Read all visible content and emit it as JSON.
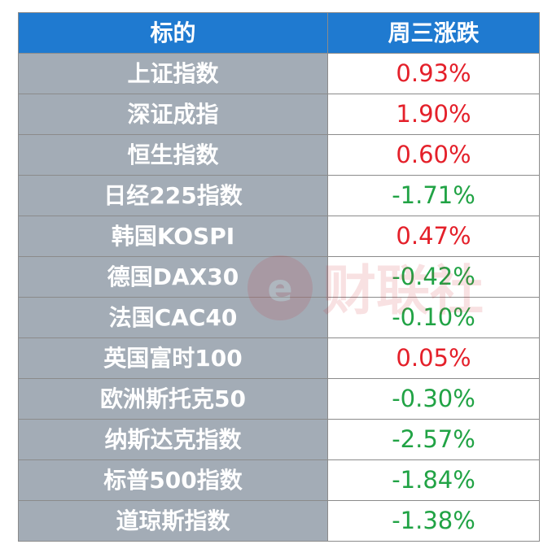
{
  "header": {
    "col_name": "标的",
    "col_change": "周三涨跌"
  },
  "rows": [
    {
      "name": "上证指数",
      "change": "0.93%",
      "direction": "up"
    },
    {
      "name": "深证成指",
      "change": "1.90%",
      "direction": "up"
    },
    {
      "name": "恒生指数",
      "change": "0.60%",
      "direction": "up"
    },
    {
      "name": "日经225指数",
      "change": "-1.71%",
      "direction": "down"
    },
    {
      "name": "韩国KOSPI",
      "change": "0.47%",
      "direction": "up"
    },
    {
      "name": "德国DAX30",
      "change": "-0.42%",
      "direction": "down"
    },
    {
      "name": "法国CAC40",
      "change": "-0.10%",
      "direction": "down"
    },
    {
      "name": "英国富时100",
      "change": "0.05%",
      "direction": "up"
    },
    {
      "name": "欧洲斯托克50",
      "change": "-0.30%",
      "direction": "down"
    },
    {
      "name": "纳斯达克指数",
      "change": "-2.57%",
      "direction": "down"
    },
    {
      "name": "标普500指数",
      "change": "-1.84%",
      "direction": "down"
    },
    {
      "name": "道琼斯指数",
      "change": "-1.38%",
      "direction": "down"
    }
  ],
  "colors": {
    "header_bg": "#1f7ad0",
    "name_bg": "#a3acb6",
    "up": "#e4202a",
    "down": "#21a345"
  },
  "watermark": {
    "text": "财联社"
  }
}
